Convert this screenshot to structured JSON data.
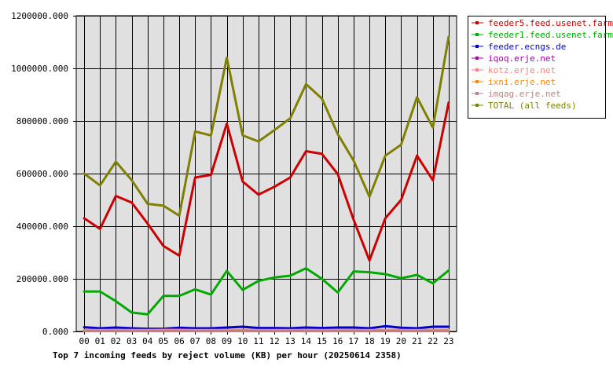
{
  "chart_data": {
    "type": "line",
    "title": "Top 7 incoming feeds by reject volume (KB) per hour (20250614 2358)",
    "xlabel": "",
    "ylabel": "",
    "categories": [
      "00",
      "01",
      "02",
      "03",
      "04",
      "05",
      "06",
      "07",
      "08",
      "09",
      "10",
      "11",
      "12",
      "13",
      "14",
      "15",
      "16",
      "17",
      "18",
      "19",
      "20",
      "21",
      "22",
      "23"
    ],
    "ylim": [
      0,
      1200000
    ],
    "yticks": [
      0,
      200000,
      400000,
      600000,
      800000,
      1000000,
      1200000
    ],
    "ytick_labels": [
      "0.000",
      "200000.000",
      "400000.000",
      "600000.000",
      "800000.000",
      "1000000.000",
      "1200000.000"
    ],
    "grid": true,
    "legend_position": "right",
    "background_color": "#e0e0e0",
    "series": [
      {
        "name": "feeder5.feed.usenet.farm",
        "color": "#cc0000",
        "values": [
          430000,
          390000,
          515000,
          490000,
          410000,
          325000,
          288000,
          585000,
          595000,
          790000,
          570000,
          520000,
          550000,
          585000,
          685000,
          675000,
          598000,
          425000,
          270000,
          430000,
          500000,
          668000,
          575000,
          870000
        ]
      },
      {
        "name": "feeder1.feed.usenet.farm",
        "color": "#00aa00",
        "values": [
          152000,
          152000,
          115000,
          72000,
          65000,
          135000,
          135000,
          160000,
          140000,
          230000,
          158000,
          192000,
          205000,
          212000,
          240000,
          200000,
          148000,
          228000,
          225000,
          218000,
          202000,
          215000,
          183000,
          232000
        ]
      },
      {
        "name": "feeder.ecngs.de",
        "color": "#0000cc",
        "values": [
          16000,
          12000,
          15000,
          12000,
          10000,
          10000,
          14000,
          12000,
          12000,
          15000,
          18000,
          13000,
          13000,
          12000,
          15000,
          13000,
          15000,
          15000,
          12000,
          20000,
          14000,
          12000,
          18000,
          18000
        ]
      },
      {
        "name": "iqoq.erje.net",
        "color": "#aa00aa",
        "values": [
          3000,
          3000,
          3000,
          3000,
          3000,
          3000,
          3000,
          3000,
          3000,
          3000,
          3000,
          3000,
          3000,
          3000,
          3000,
          3000,
          3000,
          3000,
          3000,
          3000,
          3000,
          3000,
          3000,
          3000
        ]
      },
      {
        "name": "kotz.erje.net",
        "color": "#ff8080",
        "values": [
          5000,
          5000,
          5000,
          5000,
          5000,
          6000,
          6000,
          5000,
          5000,
          5000,
          5000,
          5000,
          5000,
          5000,
          5000,
          5000,
          5000,
          5000,
          5000,
          5000,
          5000,
          5000,
          5000,
          5000
        ]
      },
      {
        "name": "ixni.erje.net",
        "color": "#ff8800",
        "values": [
          2000,
          2000,
          2000,
          2000,
          2000,
          2000,
          2000,
          2000,
          2000,
          2000,
          2000,
          2000,
          2000,
          2000,
          2000,
          2000,
          2000,
          2000,
          2000,
          2000,
          2000,
          2000,
          2000,
          2000
        ]
      },
      {
        "name": "imqag.erje.net",
        "color": "#c08080",
        "values": [
          1500,
          1500,
          1500,
          1500,
          1500,
          1500,
          1500,
          1500,
          1500,
          1500,
          1500,
          1500,
          1500,
          1500,
          1500,
          1500,
          1500,
          1500,
          1500,
          1500,
          1500,
          1500,
          1500,
          1500
        ]
      },
      {
        "name": "TOTAL (all feeds)",
        "color": "#808000",
        "values": [
          600000,
          555000,
          645000,
          575000,
          485000,
          478000,
          440000,
          760000,
          745000,
          1040000,
          745000,
          722000,
          765000,
          810000,
          940000,
          885000,
          750000,
          650000,
          512000,
          668000,
          710000,
          890000,
          775000,
          1120000
        ]
      }
    ]
  }
}
